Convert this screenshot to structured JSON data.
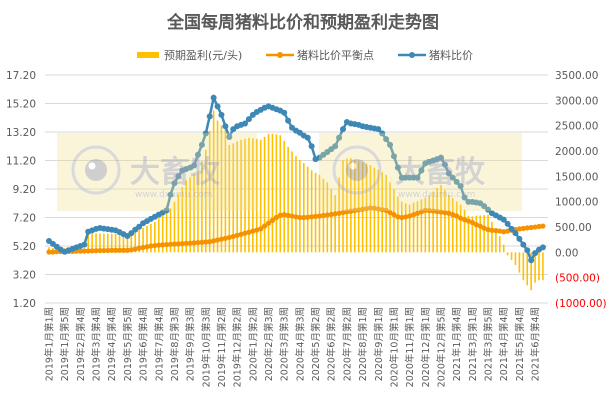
{
  "chart_data": {
    "type": "bar+line",
    "title": "全国每周猪料比价和预期盈利走势图",
    "legend_position": "top",
    "grid": true,
    "x_tick_labels": [
      "2019年1月第1周",
      "2019年1月第5周",
      "2019年2月第4周",
      "2019年3月第4周",
      "2019年4月第4周",
      "2019年5月第5周",
      "2019年6月第4周",
      "2019年7月第4周",
      "2019年8月第3周",
      "2019年9月第3周",
      "2019年10月第3周",
      "2019年11月第2周",
      "2019年12月第2周",
      "2020年1月第2周",
      "2020年2月第3周",
      "2020年3月第3周",
      "2020年4月第3周",
      "2020年5月第2周",
      "2020年6月第2周",
      "2020年7月第2周",
      "2020年8月第1周",
      "2020年9月第1周",
      "2020年10月第1周",
      "2020年11月第1周",
      "2020年12月第1周",
      "2020年12月第5周",
      "2021年1月第4周",
      "2021年3月第1周",
      "2021年3月第5周",
      "2021年4月第4周",
      "2021年5月第4周",
      "2021年6月第4周"
    ],
    "left_axis": {
      "ylim": [
        1.2,
        17.2
      ],
      "ticks": [
        "17.20",
        "15.20",
        "13.20",
        "11.20",
        "9.20",
        "7.20",
        "5.20",
        "3.20",
        "1.20"
      ]
    },
    "right_axis": {
      "ylim": [
        -1000,
        3500
      ],
      "ticks": [
        "3500.00",
        "3000.00",
        "2500.00",
        "2000.00",
        "1500.00",
        "1000.00",
        "500.00",
        "0.00",
        "(500.00)",
        "(1000.00)"
      ],
      "negative_color": "#ff0000"
    },
    "series": [
      {
        "name": "预期盈利(元/头)",
        "type": "bar",
        "axis": "right",
        "color": "#ffc000",
        "values": [
          100,
          90,
          80,
          80,
          80,
          80,
          80,
          80,
          80,
          80,
          380,
          378,
          375,
          372,
          370,
          368,
          365,
          362,
          360,
          357,
          354,
          350,
          395,
          440,
          480,
          520,
          560,
          600,
          670,
          740,
          800,
          870,
          1000,
          1150,
          1290,
          1420,
          1480,
          1540,
          1600,
          1800,
          2020,
          2400,
          2800,
          2600,
          2500,
          2450,
          2120,
          2150,
          2190,
          2220,
          2240,
          2260,
          2250,
          2240,
          2220,
          2280,
          2340,
          2340,
          2330,
          2310,
          2200,
          2080,
          1990,
          1900,
          1820,
          1760,
          1690,
          1620,
          1570,
          1530,
          1450,
          1380,
          1250,
          1130,
          1480,
          1820,
          1850,
          1860,
          1830,
          1800,
          1780,
          1750,
          1720,
          1670,
          1630,
          1580,
          1530,
          1380,
          1240,
          1100,
          1000,
          970,
          940,
          980,
          1010,
          1050,
          1080,
          1130,
          1200,
          1270,
          1330,
          1230,
          1130,
          1070,
          1000,
          940,
          840,
          720,
          710,
          720,
          730,
          735,
          740,
          600,
          460,
          320,
          150,
          -60,
          -150,
          -250,
          -400,
          -550,
          -650,
          -750,
          -600,
          -550,
          -550
        ]
      },
      {
        "name": "猪料比价平衡点",
        "type": "line",
        "axis": "left",
        "color": "#f59200",
        "values": [
          4.78,
          4.78,
          4.8,
          4.8,
          4.8,
          4.82,
          4.82,
          4.84,
          4.84,
          4.85,
          4.85,
          4.86,
          4.87,
          4.88,
          4.88,
          4.89,
          4.9,
          4.9,
          4.9,
          4.9,
          4.9,
          4.93,
          4.98,
          5.05,
          5.1,
          5.15,
          5.2,
          5.23,
          5.26,
          5.28,
          5.3,
          5.32,
          5.34,
          5.35,
          5.37,
          5.39,
          5.4,
          5.42,
          5.44,
          5.46,
          5.48,
          5.5,
          5.56,
          5.62,
          5.68,
          5.74,
          5.8,
          5.87,
          5.95,
          6.02,
          6.1,
          6.17,
          6.25,
          6.32,
          6.4,
          6.6,
          6.8,
          7.0,
          7.2,
          7.35,
          7.4,
          7.35,
          7.3,
          7.25,
          7.2,
          7.2,
          7.22,
          7.25,
          7.28,
          7.3,
          7.34,
          7.38,
          7.42,
          7.46,
          7.5,
          7.55,
          7.6,
          7.64,
          7.69,
          7.73,
          7.78,
          7.82,
          7.87,
          7.85,
          7.8,
          7.75,
          7.7,
          7.55,
          7.4,
          7.25,
          7.2,
          7.25,
          7.3,
          7.4,
          7.5,
          7.6,
          7.7,
          7.68,
          7.65,
          7.62,
          7.58,
          7.54,
          7.5,
          7.4,
          7.3,
          7.15,
          7.05,
          6.95,
          6.85,
          6.7,
          6.6,
          6.45,
          6.35,
          6.3,
          6.28,
          6.25,
          6.2,
          6.25,
          6.3,
          6.35,
          6.4,
          6.43,
          6.47,
          6.5,
          6.53,
          6.57,
          6.6
        ]
      },
      {
        "name": "猪料比价",
        "type": "line",
        "axis": "left",
        "color": "#3e88b5",
        "values": [
          5.55,
          5.35,
          5.15,
          4.95,
          4.8,
          4.9,
          5.0,
          5.1,
          5.2,
          5.3,
          6.2,
          6.3,
          6.4,
          6.46,
          6.42,
          6.38,
          6.34,
          6.3,
          6.17,
          6.03,
          5.9,
          6.1,
          6.35,
          6.55,
          6.8,
          6.95,
          7.1,
          7.25,
          7.4,
          7.55,
          7.7,
          8.8,
          9.6,
          10.1,
          10.5,
          10.6,
          10.7,
          10.85,
          11.6,
          12.3,
          13.1,
          14.3,
          15.6,
          15.0,
          14.4,
          13.6,
          12.85,
          13.4,
          13.6,
          13.7,
          13.8,
          14.1,
          14.4,
          14.6,
          14.75,
          14.9,
          15.0,
          14.9,
          14.8,
          14.7,
          14.55,
          14.0,
          13.5,
          13.3,
          13.15,
          12.95,
          12.8,
          12.2,
          11.3,
          11.4,
          11.6,
          11.8,
          12.0,
          12.2,
          12.8,
          13.4,
          13.9,
          13.8,
          13.75,
          13.7,
          13.6,
          13.55,
          13.5,
          13.45,
          13.4,
          13.1,
          12.7,
          12.3,
          11.5,
          10.7,
          10.0,
          10.0,
          10.0,
          10.0,
          10.0,
          10.5,
          11.0,
          11.1,
          11.2,
          11.3,
          11.4,
          10.9,
          10.3,
          10.0,
          9.7,
          9.4,
          8.6,
          8.3,
          8.3,
          8.25,
          8.2,
          8.0,
          7.75,
          7.5,
          7.35,
          7.2,
          7.05,
          6.75,
          6.4,
          6.1,
          5.7,
          5.3,
          4.9,
          4.2,
          4.7,
          4.95,
          5.1
        ]
      }
    ]
  },
  "watermark": {
    "brand": "大畜牧",
    "url": "www.dxumu.com"
  }
}
